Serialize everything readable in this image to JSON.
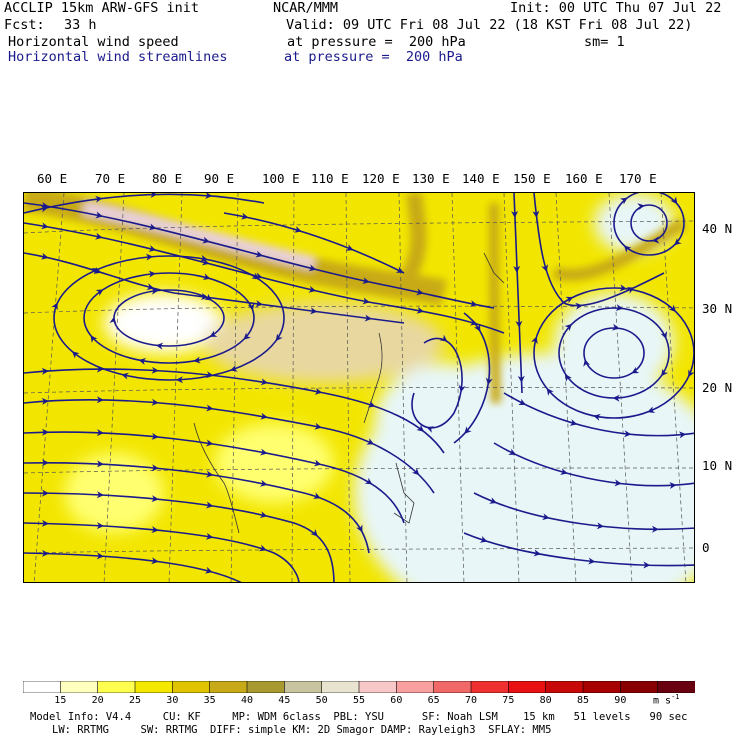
{
  "header": {
    "left_line1": "ACCLIP 15km ARW-GFS init",
    "center_line1": "NCAR/MMM",
    "right_line1": "Init: 00 UTC Thu 07 Jul 22",
    "fcst_label": "Fcst:",
    "fcst_value": "33 h",
    "valid": "Valid: 09 UTC Fri 08 Jul 22 (18 KST Fri 08 Jul 22)",
    "field1": "Horizontal wind speed",
    "field1_level": "at pressure =  200 hPa",
    "field1_sm": "sm= 1",
    "field2": "Horizontal wind streamlines",
    "field2_level": "at pressure =  200 hPa"
  },
  "map": {
    "lon_labels": [
      "60 E",
      "70 E",
      "80 E",
      "90 E",
      "100 E",
      "110 E",
      "120 E",
      "130 E",
      "140 E",
      "150 E",
      "160 E",
      "170 E"
    ],
    "lat_labels": [
      "40 N",
      "30 N",
      "20 N",
      "10 N",
      "0"
    ]
  },
  "colorbar": {
    "levels": [
      "15",
      "20",
      "25",
      "30",
      "35",
      "40",
      "45",
      "50",
      "55",
      "60",
      "65",
      "70",
      "75",
      "80",
      "85",
      "90"
    ],
    "units": "m s",
    "units_exp": "-1",
    "colors": [
      "#ffffff",
      "#ffffc0",
      "#ffff50",
      "#f5e800",
      "#e0c400",
      "#c8aa18",
      "#a89a30",
      "#c8c4a0",
      "#e8e4d0",
      "#f8c8c8",
      "#f8a0a0",
      "#f06868",
      "#f03030",
      "#e81010",
      "#c80808",
      "#a80000",
      "#880000",
      "#680010"
    ]
  },
  "footer": {
    "line1": "Model Info: V4.4     CU: KF     MP: WDM 6class  PBL: YSU      SF: Noah LSM    15 km   51 levels   90 sec",
    "line2": "LW: RRTMG     SW: RRTMG  DIFF: simple KM: 2D Smagor DAMP: Rayleigh3  SFLAY: MM5"
  }
}
